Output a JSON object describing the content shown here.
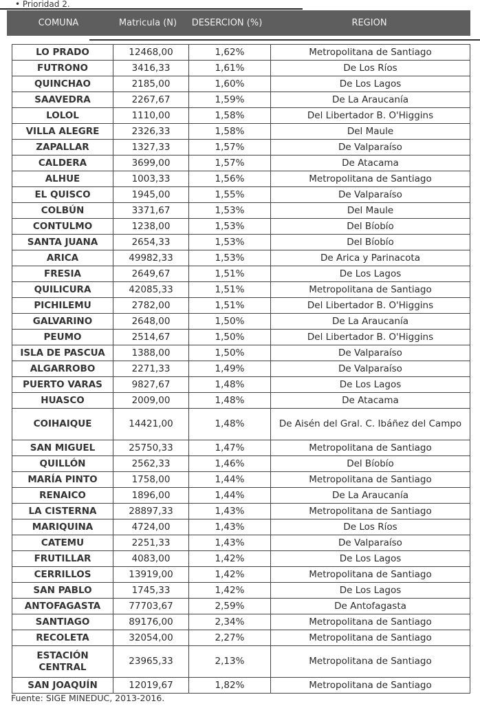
{
  "top_note": "• Prioridad 2.",
  "header": {
    "comuna": "COMUNA",
    "matricula": "Matricula (N)",
    "desercion": "DESERCION (%)",
    "region": "REGION"
  },
  "rows": [
    [
      "LO PRADO",
      "12468,00",
      "1,62%",
      "Metropolitana de Santiago"
    ],
    [
      "FUTRONO",
      "3416,33",
      "1,61%",
      "De Los Ríos"
    ],
    [
      "QUINCHAO",
      "2185,00",
      "1,60%",
      "De Los Lagos"
    ],
    [
      "SAAVEDRA",
      "2267,67",
      "1,59%",
      "De La Araucanía"
    ],
    [
      "LOLOL",
      "1110,00",
      "1,58%",
      "Del Libertador B. O'Higgins"
    ],
    [
      "VILLA ALEGRE",
      "2326,33",
      "1,58%",
      "Del Maule"
    ],
    [
      "ZAPALLAR",
      "1327,33",
      "1,57%",
      "De Valparaíso"
    ],
    [
      "CALDERA",
      "3699,00",
      "1,57%",
      "De Atacama"
    ],
    [
      "ALHUE",
      "1003,33",
      "1,56%",
      "Metropolitana de Santiago"
    ],
    [
      "EL QUISCO",
      "1945,00",
      "1,55%",
      "De Valparaíso"
    ],
    [
      "COLBÚN",
      "3371,67",
      "1,53%",
      "Del Maule"
    ],
    [
      "CONTULMO",
      "1238,00",
      "1,53%",
      "Del Bíobío"
    ],
    [
      "SANTA JUANA",
      "2654,33",
      "1,53%",
      "Del Bíobío"
    ],
    [
      "ARICA",
      "49982,33",
      "1,53%",
      "De Arica y Parinacota"
    ],
    [
      "FRESIA",
      "2649,67",
      "1,51%",
      "De Los Lagos"
    ],
    [
      "QUILICURA",
      "42085,33",
      "1,51%",
      "Metropolitana de Santiago"
    ],
    [
      "PICHILEMU",
      "2782,00",
      "1,51%",
      "Del Libertador B. O'Higgins"
    ],
    [
      "GALVARINO",
      "2648,00",
      "1,50%",
      "De La Araucanía"
    ],
    [
      "PEUMO",
      "2514,67",
      "1,50%",
      "Del Libertador B. O'Higgins"
    ],
    [
      "ISLA DE PASCUA",
      "1388,00",
      "1,50%",
      "De Valparaíso"
    ],
    [
      "ALGARROBO",
      "2271,33",
      "1,49%",
      "De Valparaíso"
    ],
    [
      "PUERTO VARAS",
      "9827,67",
      "1,48%",
      "De Los Lagos"
    ],
    [
      "HUASCO",
      "2009,00",
      "1,48%",
      "De Atacama"
    ],
    [
      "COIHAIQUE",
      "14421,00",
      "1,48%",
      "De Aisén del Gral. C. Ibáñez del Campo"
    ],
    [
      "SAN MIGUEL",
      "25750,33",
      "1,47%",
      "Metropolitana de Santiago"
    ],
    [
      "QUILLÓN",
      "2562,33",
      "1,46%",
      "Del Bíobío"
    ],
    [
      "MARÍA PINTO",
      "1758,00",
      "1,44%",
      "Metropolitana de Santiago"
    ],
    [
      "RENAICO",
      "1896,00",
      "1,44%",
      "De La Araucanía"
    ],
    [
      "LA CISTERNA",
      "28897,33",
      "1,43%",
      "Metropolitana de Santiago"
    ],
    [
      "MARIQUINA",
      "4724,00",
      "1,43%",
      "De Los Ríos"
    ],
    [
      "CATEMU",
      "2251,33",
      "1,43%",
      "De Valparaíso"
    ],
    [
      "FRUTILLAR",
      "4083,00",
      "1,42%",
      "De Los Lagos"
    ],
    [
      "CERRILLOS",
      "13919,00",
      "1,42%",
      "Metropolitana de Santiago"
    ],
    [
      "SAN PABLO",
      "1745,33",
      "1,42%",
      "De Los Lagos"
    ],
    [
      "ANTOFAGASTA",
      "77703,67",
      "2,59%",
      "De Antofagasta"
    ],
    [
      "SANTIAGO",
      "89176,00",
      "2,34%",
      "Metropolitana de Santiago"
    ],
    [
      "RECOLETA",
      "32054,00",
      "2,27%",
      "Metropolitana de Santiago"
    ],
    [
      "ESTACIÓN CENTRAL",
      "23965,33",
      "2,13%",
      "Metropolitana de Santiago"
    ],
    [
      "SAN JOAQUÍN",
      "12019,67",
      "1,82%",
      "Metropolitana de Santiago"
    ]
  ],
  "source": "Fuente: SIGE MINEDUC, 2013-2016."
}
